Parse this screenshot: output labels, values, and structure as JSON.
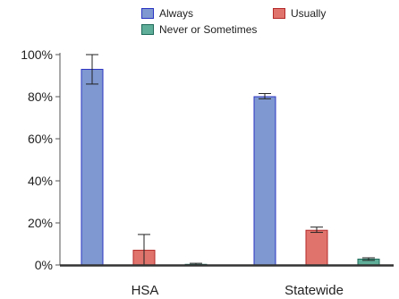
{
  "chart_data": {
    "type": "bar",
    "categories": [
      "HSA",
      "Statewide"
    ],
    "series": [
      {
        "name": "Always",
        "color": "#7f98d1",
        "border": "#2a34c2",
        "values": [
          93,
          80
        ],
        "error_low": [
          86,
          79
        ],
        "error_high": [
          100,
          81.5
        ]
      },
      {
        "name": "Usually",
        "color": "#e0746c",
        "border": "#b42a2a",
        "values": [
          7,
          16.5
        ],
        "error_low": [
          0,
          15.5
        ],
        "error_high": [
          14.5,
          18
        ]
      },
      {
        "name": "Never or Sometimes",
        "color": "#5fae99",
        "border": "#1f6b5a",
        "values": [
          0.3,
          2.8
        ],
        "error_low": [
          0,
          2.2
        ],
        "error_high": [
          0.8,
          3.4
        ]
      }
    ],
    "ylim": [
      0,
      100
    ],
    "yticks": [
      0,
      20,
      40,
      60,
      80,
      100
    ],
    "ytick_labels": [
      "0%",
      "20%",
      "40%",
      "60%",
      "80%",
      "100%"
    ],
    "xlabel": "",
    "ylabel": "",
    "legend_position": "top",
    "grid": false
  }
}
